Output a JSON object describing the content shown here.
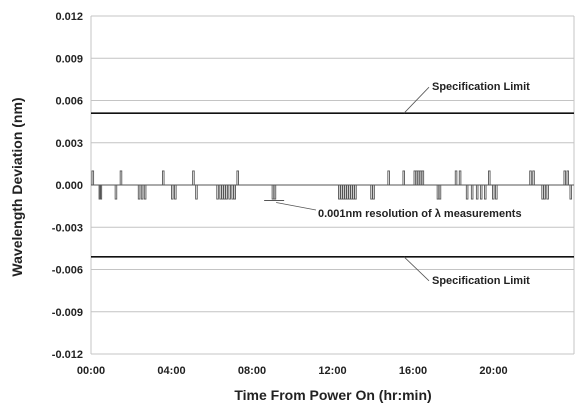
{
  "chart_data": {
    "type": "line",
    "xlabel": "Time From Power On  (hr:min)",
    "ylabel": "Wavelength Deviation (nm)",
    "ylim": [
      -0.012,
      0.012
    ],
    "xlim_hours": [
      0,
      24
    ],
    "y_ticks": [
      "0.012",
      "0.009",
      "0.006",
      "0.003",
      "0.000",
      "-0.003",
      "-0.006",
      "-0.009",
      "-0.012"
    ],
    "x_ticks": [
      "00:00",
      "04:00",
      "08:00",
      "12:00",
      "16:00",
      "20:00"
    ],
    "grid": "horizontal",
    "reference_lines": [
      {
        "label": "Specification Limit",
        "value": 0.0051
      },
      {
        "label": "Specification Limit",
        "value": -0.0051
      }
    ],
    "annotations": [
      {
        "text": "0.001nm  resolution of λ measurements",
        "x_hours": 9.1,
        "y": -0.0011
      }
    ],
    "series": [
      {
        "events": [
          {
            "t": 0.05,
            "v": 0.001
          },
          {
            "t": 0.4,
            "v": -0.001
          },
          {
            "t": 0.45,
            "v": -0.001
          },
          {
            "t": 1.2,
            "v": -0.001
          },
          {
            "t": 1.45,
            "v": 0.001
          },
          {
            "t": 2.35,
            "v": -0.001
          },
          {
            "t": 2.5,
            "v": -0.001
          },
          {
            "t": 2.65,
            "v": -0.001
          },
          {
            "t": 3.55,
            "v": 0.001
          },
          {
            "t": 4.0,
            "v": -0.001
          },
          {
            "t": 4.15,
            "v": -0.001
          },
          {
            "t": 5.05,
            "v": 0.001
          },
          {
            "t": 5.2,
            "v": -0.001
          },
          {
            "t": 6.25,
            "v": -0.001
          },
          {
            "t": 6.4,
            "v": -0.001
          },
          {
            "t": 6.5,
            "v": -0.001
          },
          {
            "t": 6.6,
            "v": -0.001
          },
          {
            "t": 6.7,
            "v": -0.001
          },
          {
            "t": 6.85,
            "v": -0.001
          },
          {
            "t": 7.0,
            "v": -0.001
          },
          {
            "t": 7.1,
            "v": -0.001
          },
          {
            "t": 7.25,
            "v": 0.001
          },
          {
            "t": 9.0,
            "v": -0.001
          },
          {
            "t": 9.1,
            "v": -0.001
          },
          {
            "t": 12.3,
            "v": -0.001
          },
          {
            "t": 12.4,
            "v": -0.001
          },
          {
            "t": 12.5,
            "v": -0.001
          },
          {
            "t": 12.6,
            "v": -0.001
          },
          {
            "t": 12.7,
            "v": -0.001
          },
          {
            "t": 12.8,
            "v": -0.001
          },
          {
            "t": 12.9,
            "v": -0.001
          },
          {
            "t": 13.0,
            "v": -0.001
          },
          {
            "t": 13.1,
            "v": -0.001
          },
          {
            "t": 13.9,
            "v": -0.001
          },
          {
            "t": 14.0,
            "v": -0.001
          },
          {
            "t": 14.75,
            "v": 0.001
          },
          {
            "t": 15.5,
            "v": 0.001
          },
          {
            "t": 16.05,
            "v": 0.001
          },
          {
            "t": 16.15,
            "v": 0.001
          },
          {
            "t": 16.25,
            "v": 0.001
          },
          {
            "t": 16.35,
            "v": 0.001
          },
          {
            "t": 16.45,
            "v": 0.001
          },
          {
            "t": 17.2,
            "v": -0.001
          },
          {
            "t": 17.3,
            "v": -0.001
          },
          {
            "t": 18.1,
            "v": 0.001
          },
          {
            "t": 18.3,
            "v": 0.001
          },
          {
            "t": 18.65,
            "v": -0.001
          },
          {
            "t": 18.9,
            "v": -0.001
          },
          {
            "t": 19.15,
            "v": -0.001
          },
          {
            "t": 19.35,
            "v": -0.001
          },
          {
            "t": 19.55,
            "v": -0.001
          },
          {
            "t": 19.75,
            "v": 0.001
          },
          {
            "t": 19.95,
            "v": -0.001
          },
          {
            "t": 20.1,
            "v": -0.001
          },
          {
            "t": 21.8,
            "v": 0.001
          },
          {
            "t": 21.95,
            "v": 0.001
          },
          {
            "t": 22.4,
            "v": -0.001
          },
          {
            "t": 22.5,
            "v": -0.001
          },
          {
            "t": 22.65,
            "v": -0.001
          },
          {
            "t": 23.5,
            "v": 0.001
          },
          {
            "t": 23.65,
            "v": 0.001
          },
          {
            "t": 23.8,
            "v": -0.001
          }
        ]
      }
    ]
  }
}
